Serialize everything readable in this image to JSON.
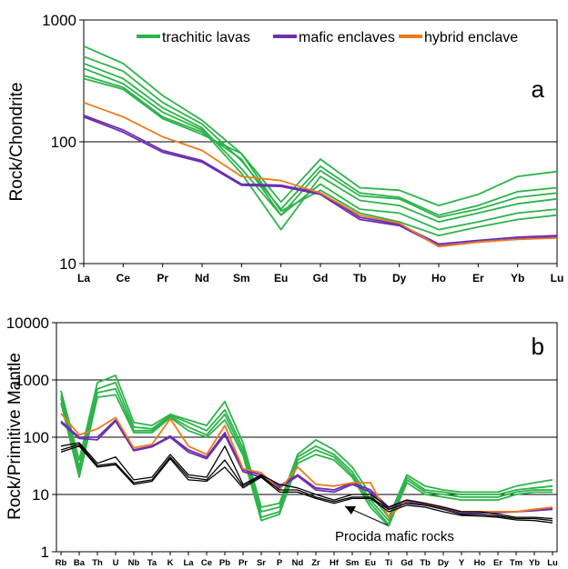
{
  "chart_data": [
    {
      "type": "line",
      "panel_label": "a",
      "ylabel": "Rock/Chondrite",
      "yscale": "log",
      "ylim": [
        10,
        1000
      ],
      "yticks": [
        "10",
        "100",
        "1000"
      ],
      "categories": [
        "La",
        "Ce",
        "Pr",
        "Nd",
        "Sm",
        "Eu",
        "Gd",
        "Tb",
        "Dy",
        "Ho",
        "Er",
        "Yb",
        "Lu"
      ],
      "legend": [
        {
          "label": "trachitic lavas",
          "color": "#2db34a"
        },
        {
          "label": "mafic enclaves",
          "color": "#6a2fb0"
        },
        {
          "label": "hybrid enclave",
          "color": "#ee7a1a"
        }
      ],
      "series": [
        {
          "group": "trachitic lavas",
          "color": "#2db34a",
          "values": [
            610,
            440,
            240,
            150,
            80,
            32,
            72,
            42,
            40,
            30,
            37,
            52,
            57
          ]
        },
        {
          "group": "trachitic lavas",
          "color": "#2db34a",
          "values": [
            500,
            380,
            210,
            140,
            70,
            28,
            63,
            38,
            35,
            25,
            30,
            39,
            42
          ]
        },
        {
          "group": "trachitic lavas",
          "color": "#2db34a",
          "values": [
            440,
            330,
            190,
            130,
            60,
            25,
            58,
            36,
            34,
            24,
            28,
            35,
            38
          ]
        },
        {
          "group": "trachitic lavas",
          "color": "#2db34a",
          "values": [
            400,
            300,
            175,
            125,
            55,
            19,
            52,
            33,
            30,
            22,
            26,
            31,
            34
          ]
        },
        {
          "group": "trachitic lavas",
          "color": "#2db34a",
          "values": [
            350,
            280,
            160,
            120,
            72,
            25,
            45,
            28,
            26,
            19,
            22,
            26,
            28
          ]
        },
        {
          "group": "trachitic lavas",
          "color": "#2db34a",
          "values": [
            330,
            270,
            155,
            115,
            80,
            27,
            40,
            26,
            22,
            17,
            20,
            23,
            25
          ]
        },
        {
          "group": "mafic enclaves",
          "color": "#6a2fb0",
          "values": [
            165,
            125,
            85,
            70,
            45,
            44,
            38,
            24,
            21,
            14.5,
            15.5,
            16.5,
            17
          ]
        },
        {
          "group": "mafic enclaves",
          "color": "#6a2fb0",
          "values": [
            160,
            120,
            82,
            68,
            44,
            43,
            37,
            23,
            20.5,
            14,
            15,
            16,
            16.5
          ]
        },
        {
          "group": "hybrid enclave",
          "color": "#ee7a1a",
          "values": [
            210,
            160,
            110,
            85,
            52,
            48,
            38,
            25,
            21.5,
            13.8,
            15,
            15.8,
            16.2
          ]
        }
      ]
    },
    {
      "type": "line",
      "panel_label": "b",
      "ylabel": "Rock/Primitive Mantle",
      "yscale": "log",
      "ylim": [
        1,
        10000
      ],
      "yticks": [
        "1",
        "10",
        "100",
        "1000",
        "10000"
      ],
      "categories": [
        "Rb",
        "Ba",
        "Th",
        "U",
        "Nb",
        "Ta",
        "K",
        "La",
        "Ce",
        "Pb",
        "Pr",
        "Sr",
        "P",
        "Nd",
        "Zr",
        "Hf",
        "Sm",
        "Eu",
        "Ti",
        "Gd",
        "Tb",
        "Dy",
        "Y",
        "Ho",
        "Er",
        "Tm",
        "Yb",
        "Lu"
      ],
      "annotation": "Procida mafic rocks",
      "series": [
        {
          "group": "trachitic lavas",
          "color": "#2db34a",
          "values": [
            650,
            40,
            900,
            1200,
            180,
            160,
            250,
            200,
            160,
            420,
            80,
            6,
            7,
            50,
            90,
            60,
            30,
            10,
            4,
            22,
            14,
            12,
            11,
            11,
            11,
            14,
            16,
            18
          ]
        },
        {
          "group": "trachitic lavas",
          "color": "#2db34a",
          "values": [
            550,
            30,
            700,
            900,
            150,
            140,
            240,
            180,
            130,
            300,
            65,
            5,
            6,
            45,
            70,
            50,
            25,
            8,
            3.5,
            20,
            12,
            11,
            10,
            10,
            10,
            12,
            13,
            14
          ]
        },
        {
          "group": "trachitic lavas",
          "color": "#2db34a",
          "values": [
            480,
            25,
            600,
            700,
            130,
            130,
            230,
            150,
            110,
            250,
            55,
            4,
            5,
            40,
            60,
            45,
            22,
            7,
            3,
            18,
            11,
            10,
            9,
            9,
            9,
            11,
            12,
            12
          ]
        },
        {
          "group": "trachitic lavas",
          "color": "#2db34a",
          "values": [
            400,
            20,
            500,
            550,
            120,
            120,
            220,
            130,
            100,
            200,
            48,
            3.5,
            4.5,
            35,
            50,
            40,
            20,
            6,
            2.8,
            16,
            10,
            9,
            8,
            8,
            8,
            10,
            11,
            11
          ]
        },
        {
          "group": "mafic enclaves",
          "color": "#6a2fb0",
          "values": [
            190,
            100,
            100,
            200,
            60,
            70,
            105,
            60,
            45,
            120,
            27,
            22,
            14,
            22,
            13,
            12,
            16,
            12,
            6,
            8,
            7,
            6,
            5,
            5,
            5,
            5,
            5.5,
            5.8
          ]
        },
        {
          "group": "mafic enclaves",
          "color": "#6a2fb0",
          "values": [
            180,
            95,
            90,
            190,
            58,
            68,
            100,
            55,
            42,
            110,
            25,
            20,
            13,
            21,
            12,
            11,
            15,
            11,
            5.5,
            7.5,
            6.5,
            5.8,
            4.8,
            4.8,
            4.8,
            5,
            5.2,
            5.5
          ]
        },
        {
          "group": "hybrid enclave",
          "color": "#ee7a1a",
          "values": [
            260,
            110,
            140,
            220,
            65,
            75,
            210,
            70,
            50,
            160,
            28,
            24,
            12,
            30,
            15,
            14,
            16,
            16,
            4,
            8,
            7,
            6,
            5,
            5,
            5,
            5,
            5.5,
            6
          ]
        },
        {
          "group": "Procida mafic rocks",
          "color": "#000000",
          "values": [
            70,
            80,
            35,
            45,
            18,
            20,
            50,
            22,
            20,
            70,
            15,
            22,
            15,
            13,
            10,
            8,
            10,
            10,
            6,
            8,
            7,
            6,
            5,
            5,
            4.5,
            4,
            4,
            3.8
          ]
        },
        {
          "group": "Procida mafic rocks",
          "color": "#000000",
          "values": [
            60,
            75,
            32,
            35,
            16,
            18,
            45,
            20,
            18,
            40,
            14,
            21,
            12,
            12,
            9,
            7.5,
            9,
            9,
            5.5,
            7,
            6.5,
            5.5,
            4.5,
            4.5,
            4.2,
            3.8,
            3.8,
            3.5
          ]
        },
        {
          "group": "Procida mafic rocks",
          "color": "#000000",
          "values": [
            55,
            70,
            30,
            33,
            15,
            17,
            42,
            18,
            17,
            30,
            13,
            20,
            11,
            11,
            8.5,
            7,
            8.5,
            8.5,
            5,
            6.5,
            6,
            5,
            4.3,
            4.2,
            4,
            3.6,
            3.5,
            3.2
          ]
        }
      ]
    }
  ]
}
